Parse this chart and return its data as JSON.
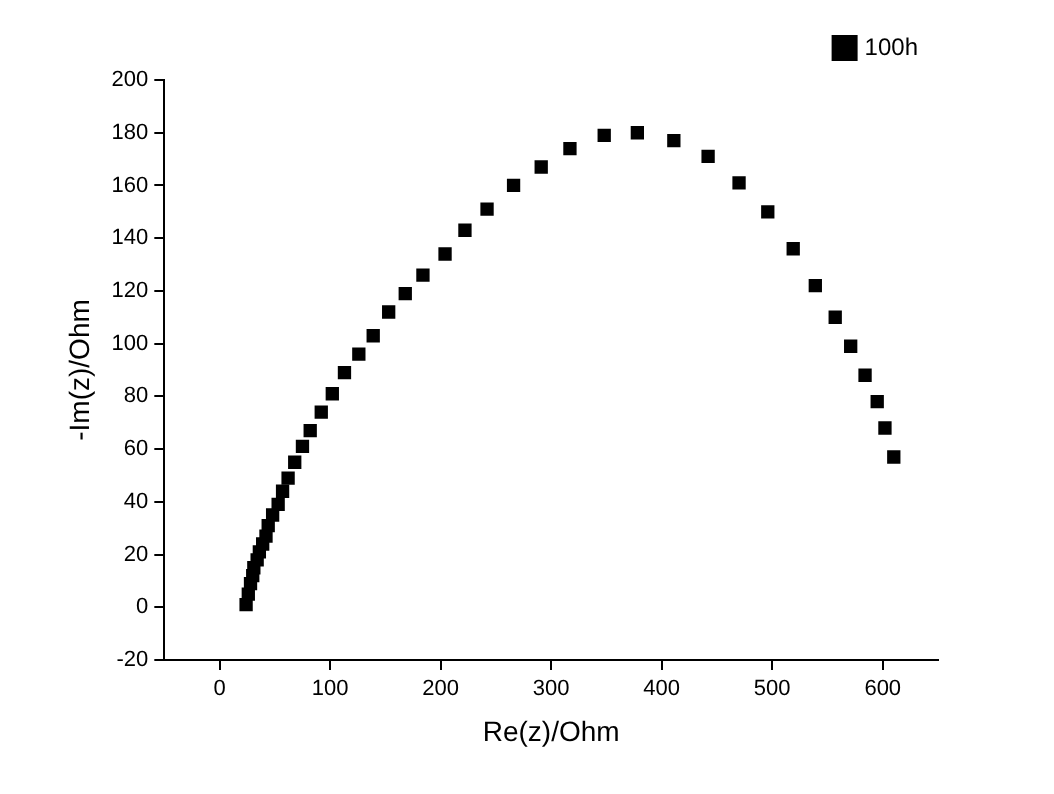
{
  "chart_data": {
    "type": "scatter",
    "xlabel": "Re(z)/Ohm",
    "ylabel": "-Im(z)/Ohm",
    "marker": "square",
    "legend": "top right",
    "grid": false,
    "xlim": [
      -50,
      650
    ],
    "xticks": [
      0,
      100,
      200,
      300,
      400,
      500,
      600
    ],
    "ylim": [
      -20,
      200
    ],
    "yticks": [
      -20,
      0,
      20,
      40,
      60,
      80,
      100,
      120,
      140,
      160,
      180,
      200
    ],
    "series": [
      {
        "name": "100h",
        "color": "#000000",
        "x": [
          24,
          26,
          28,
          30,
          31,
          34,
          36,
          39,
          42,
          44,
          48,
          53,
          57,
          62,
          68,
          75,
          82,
          92,
          102,
          113,
          126,
          139,
          153,
          168,
          184,
          204,
          222,
          242,
          266,
          291,
          317,
          348,
          378,
          411,
          442,
          470,
          496,
          519,
          539,
          557,
          571,
          584,
          595,
          602,
          610
        ],
        "values": [
          1,
          5,
          9,
          12,
          15,
          18,
          21,
          24,
          27,
          31,
          35,
          39,
          44,
          49,
          55,
          61,
          67,
          74,
          81,
          89,
          96,
          103,
          112,
          119,
          126,
          134,
          143,
          151,
          160,
          167,
          174,
          179,
          180,
          177,
          171,
          161,
          150,
          136,
          122,
          110,
          99,
          88,
          78,
          68,
          57
        ]
      }
    ]
  }
}
